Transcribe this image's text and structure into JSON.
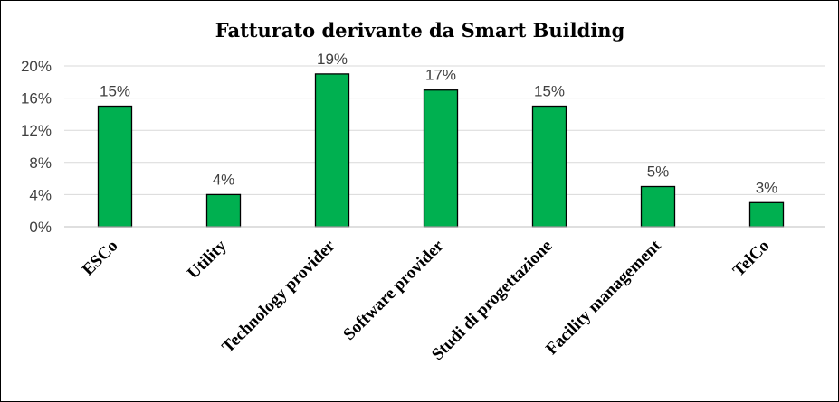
{
  "chart_data": {
    "type": "bar",
    "title": "Fatturato derivante da Smart Building",
    "categories": [
      "ESCo",
      "Utility",
      "Technology provider",
      "Software provider",
      "Studi di progettazione",
      "Facility management",
      "TelCo"
    ],
    "values": [
      15,
      4,
      19,
      17,
      15,
      5,
      3
    ],
    "data_labels": [
      "15%",
      "4%",
      "19%",
      "17%",
      "15%",
      "5%",
      "3%"
    ],
    "xlabel": "",
    "ylabel": "",
    "ylim": [
      0,
      20
    ],
    "yticks": [
      0,
      4,
      8,
      12,
      16,
      20
    ],
    "ytick_labels": [
      "0%",
      "4%",
      "8%",
      "12%",
      "16%",
      "20%"
    ],
    "grid": true,
    "legend": "none",
    "bar_color": "#00B050"
  }
}
